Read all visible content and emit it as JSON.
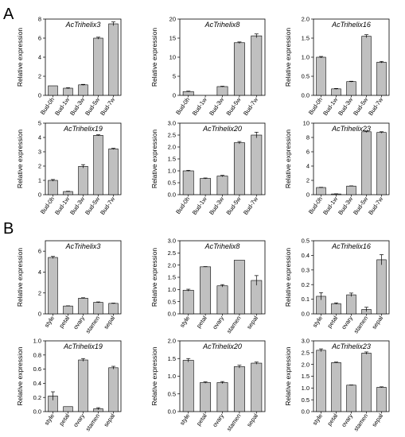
{
  "figure": {
    "panel_labels": [
      "A",
      "B"
    ]
  },
  "chart_data": [
    {
      "type": "bar",
      "title": "AcTrihelix3",
      "ylabel": "Relative expression",
      "categories": [
        "Bud-0h",
        "Bud-1w",
        "Bud-3w",
        "Bud-5w",
        "Bud-7w"
      ],
      "values": [
        1.0,
        0.75,
        1.1,
        6.0,
        7.5
      ],
      "errors": [
        0,
        0.05,
        0.05,
        0.1,
        0.2
      ],
      "ylim": [
        0,
        8
      ],
      "yticks": [
        0,
        2,
        4,
        6,
        8
      ]
    },
    {
      "type": "bar",
      "title": "AcTrihelix8",
      "ylabel": "Relative expression",
      "categories": [
        "Bud-0h",
        "Bud-1w",
        "Bud-3w",
        "Bud-5w",
        "Bud-7w"
      ],
      "values": [
        1.0,
        0.0,
        2.3,
        13.8,
        15.6
      ],
      "errors": [
        0.1,
        0,
        0.1,
        0.2,
        0.5
      ],
      "ylim": [
        0,
        20
      ],
      "yticks": [
        0,
        5,
        10,
        15,
        20
      ]
    },
    {
      "type": "bar",
      "title": "AcTrihelix16",
      "ylabel": "Relative expression",
      "categories": [
        "Bud-0h",
        "Bud-1w",
        "Bud-3w",
        "Bud-5w",
        "Bud-7w"
      ],
      "values": [
        1.0,
        0.17,
        0.36,
        1.55,
        0.87
      ],
      "errors": [
        0.02,
        0.01,
        0.01,
        0.04,
        0.02
      ],
      "ylim": [
        0,
        2.0
      ],
      "yticks": [
        0.0,
        0.5,
        1.0,
        1.5,
        2.0
      ]
    },
    {
      "type": "bar",
      "title": "AcTrihelix19",
      "ylabel": "Relative expression",
      "categories": [
        "Bud-0h",
        "Bud-1w",
        "Bud-3w",
        "Bud-5w",
        "Bud-7w"
      ],
      "values": [
        1.0,
        0.22,
        1.98,
        4.15,
        3.2
      ],
      "errors": [
        0.06,
        0.02,
        0.12,
        0.04,
        0.04
      ],
      "ylim": [
        0,
        5
      ],
      "yticks": [
        0,
        1,
        2,
        3,
        4,
        5
      ]
    },
    {
      "type": "bar",
      "title": "AcTrihelix20",
      "ylabel": "Relative expression",
      "categories": [
        "Bud-0h",
        "Bud-1w",
        "Bud-3w",
        "Bud-5w",
        "Bud-7w"
      ],
      "values": [
        1.0,
        0.68,
        0.78,
        2.18,
        2.5
      ],
      "errors": [
        0.02,
        0.02,
        0.03,
        0.05,
        0.12
      ],
      "ylim": [
        0,
        3.0
      ],
      "yticks": [
        0.0,
        0.5,
        1.0,
        1.5,
        2.0,
        2.5,
        3.0
      ]
    },
    {
      "type": "bar",
      "title": "AcTrihelix23",
      "ylabel": "Relative expression",
      "categories": [
        "Bud-0h",
        "Bud-1w",
        "Bud-3w",
        "Bud-5w",
        "Bud-7w"
      ],
      "values": [
        1.0,
        0.1,
        1.2,
        8.8,
        8.7
      ],
      "errors": [
        0.03,
        0.02,
        0.03,
        0.1,
        0.1
      ],
      "ylim": [
        0,
        10
      ],
      "yticks": [
        0,
        2,
        4,
        6,
        8,
        10
      ]
    },
    {
      "type": "bar",
      "title": "AcTrihelix3",
      "ylabel": "Relative expression",
      "categories": [
        "style",
        "petal",
        "ovary",
        "stamen",
        "sepal"
      ],
      "values": [
        5.4,
        0.75,
        1.5,
        1.1,
        1.0
      ],
      "errors": [
        0.1,
        0.02,
        0.04,
        0.04,
        0.03
      ],
      "ylim": [
        0,
        7
      ],
      "yticks": [
        0,
        2,
        4,
        6
      ]
    },
    {
      "type": "bar",
      "title": "AcTrihelix8",
      "ylabel": "Relative expression",
      "categories": [
        "style",
        "petal",
        "ovary",
        "stamen",
        "sepal"
      ],
      "values": [
        0.97,
        1.93,
        1.15,
        2.2,
        1.37
      ],
      "errors": [
        0.04,
        0.01,
        0.05,
        0.0,
        0.2
      ],
      "ylim": [
        0,
        3.0
      ],
      "yticks": [
        0.0,
        0.5,
        1.0,
        1.5,
        2.0,
        2.5,
        3.0
      ]
    },
    {
      "type": "bar",
      "title": "AcTrihelix16",
      "ylabel": "Relative expression",
      "categories": [
        "style",
        "petal",
        "ovary",
        "stamen",
        "sepal"
      ],
      "values": [
        0.12,
        0.07,
        0.13,
        0.03,
        0.37
      ],
      "errors": [
        0.025,
        0.005,
        0.012,
        0.015,
        0.035
      ],
      "ylim": [
        0,
        0.5
      ],
      "yticks": [
        0.0,
        0.1,
        0.2,
        0.3,
        0.4,
        0.5
      ]
    },
    {
      "type": "bar",
      "title": "AcTrihelix19",
      "ylabel": "Relative expression",
      "categories": [
        "style",
        "petal",
        "ovary",
        "stamen",
        "sepal"
      ],
      "values": [
        0.22,
        0.07,
        0.73,
        0.04,
        0.62
      ],
      "errors": [
        0.06,
        0.0,
        0.02,
        0.015,
        0.02
      ],
      "ylim": [
        0,
        1.0
      ],
      "yticks": [
        0.0,
        0.2,
        0.4,
        0.6,
        0.8,
        1.0
      ]
    },
    {
      "type": "bar",
      "title": "AcTrihelix20",
      "ylabel": "Relative expression",
      "categories": [
        "style",
        "petal",
        "ovary",
        "stamen",
        "sepal"
      ],
      "values": [
        1.45,
        0.82,
        0.82,
        1.27,
        1.37
      ],
      "errors": [
        0.05,
        0.02,
        0.03,
        0.04,
        0.03
      ],
      "ylim": [
        0,
        2.0
      ],
      "yticks": [
        0.0,
        0.5,
        1.0,
        1.5,
        2.0
      ]
    },
    {
      "type": "bar",
      "title": "AcTrihelix23",
      "ylabel": "Relative expression",
      "categories": [
        "style",
        "petal",
        "ovary",
        "stamen",
        "sepal"
      ],
      "values": [
        2.6,
        2.08,
        1.12,
        2.48,
        1.03
      ],
      "errors": [
        0.06,
        0.02,
        0.01,
        0.05,
        0.02
      ],
      "ylim": [
        0,
        3.0
      ],
      "yticks": [
        0.0,
        0.5,
        1.0,
        1.5,
        2.0,
        2.5,
        3.0
      ]
    }
  ]
}
